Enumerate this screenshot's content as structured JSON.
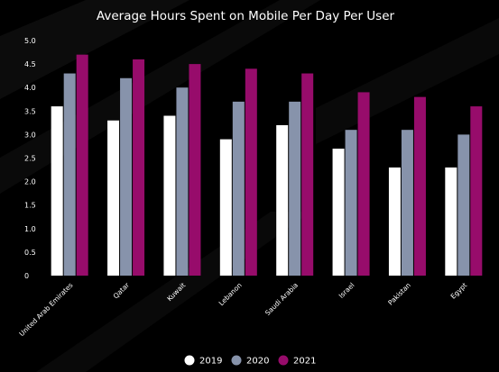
{
  "chart_data": {
    "type": "bar",
    "title": "Average Hours Spent on Mobile Per Day Per User",
    "xlabel": "",
    "ylabel": "",
    "ylim": [
      0,
      5
    ],
    "yticks": [
      "0",
      "0.5",
      "1.0",
      "1.5",
      "2.0",
      "2.5",
      "3.0",
      "3.5",
      "4.0",
      "4.5",
      "5.0"
    ],
    "categories": [
      "United Arab Emirates",
      "Qatar",
      "Kuwait",
      "Lebanon",
      "Saudi Arabia",
      "Israel",
      "Pakistan",
      "Egypt"
    ],
    "series": [
      {
        "name": "2019",
        "color": "#ffffff",
        "values": [
          3.6,
          3.3,
          3.4,
          2.9,
          3.2,
          2.7,
          2.3,
          2.3
        ]
      },
      {
        "name": "2020",
        "color": "#8793ab",
        "values": [
          4.3,
          4.2,
          4.0,
          3.7,
          3.7,
          3.1,
          3.1,
          3.0
        ]
      },
      {
        "name": "2021",
        "color": "#970c6b",
        "values": [
          4.7,
          4.6,
          4.5,
          4.4,
          4.3,
          3.9,
          3.8,
          3.6
        ]
      }
    ],
    "grid": false,
    "legend_position": "bottom-center",
    "background_color": "#000000"
  }
}
